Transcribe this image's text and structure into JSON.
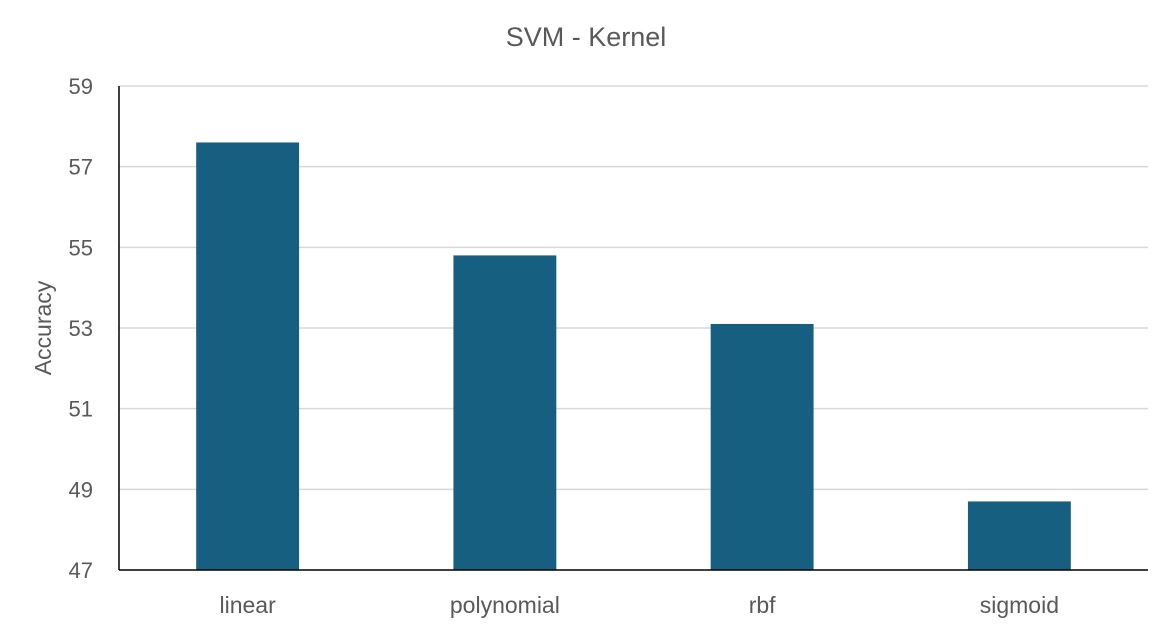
{
  "chart_data": {
    "type": "bar",
    "title": "SVM - Kernel",
    "xlabel": "",
    "ylabel": "Accuracy",
    "categories": [
      "linear",
      "polynomial",
      "rbf",
      "sigmoid"
    ],
    "values": [
      57.6,
      54.8,
      53.1,
      48.7
    ],
    "ylim": [
      47,
      59
    ],
    "yticks": [
      47,
      49,
      51,
      53,
      55,
      57,
      59
    ],
    "grid": true,
    "legend": "none",
    "colors": {
      "bar": "#175f80",
      "grid": "#d9d9d9",
      "axis": "#000000",
      "text": "#595959"
    }
  }
}
